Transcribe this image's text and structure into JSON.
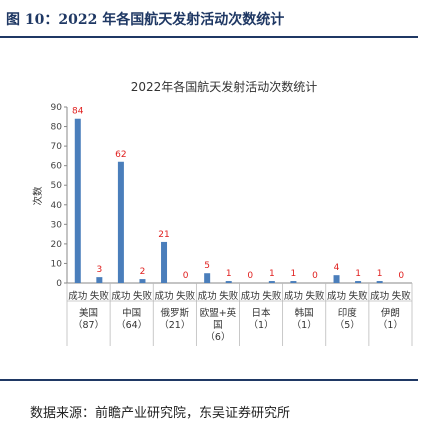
{
  "figure": {
    "title": "图 10：2022 年各国航天发射活动次数统计",
    "source": "数据来源：前瞻产业研究院，东吴证券研究所"
  },
  "chart_data": {
    "type": "bar",
    "title": "2022年各国航天发射活动次数统计",
    "ylabel": "次数",
    "ylim": [
      0,
      90
    ],
    "yticks": [
      0,
      10,
      20,
      30,
      40,
      50,
      60,
      70,
      80,
      90
    ],
    "grid": false,
    "bar_color": "#4a7ebb",
    "label_color": "#e0201f",
    "groups": [
      {
        "country": "美国",
        "total": "（87）",
        "success_label": "成功",
        "fail_label": "失败",
        "success": 84,
        "fail": 3
      },
      {
        "country": "中国",
        "total": "（64）",
        "success_label": "成功",
        "fail_label": "失败",
        "success": 62,
        "fail": 2
      },
      {
        "country": "俄罗斯",
        "total": "（21）",
        "success_label": "成功",
        "fail_label": "失败",
        "success": 21,
        "fail": 0
      },
      {
        "country": "欧盟+英国",
        "total": "（6）",
        "success_label": "成功",
        "fail_label": "失败",
        "success": 5,
        "fail": 1
      },
      {
        "country": "日本",
        "total": "（1）",
        "success_label": "成功",
        "fail_label": "失败",
        "success": 0,
        "fail": 1
      },
      {
        "country": "韩国",
        "total": "（1）",
        "success_label": "成功",
        "fail_label": "失败",
        "success": 1,
        "fail": 0
      },
      {
        "country": "印度",
        "total": "（5）",
        "success_label": "成功",
        "fail_label": "失败",
        "success": 4,
        "fail": 1
      },
      {
        "country": "伊朗",
        "total": "（1）",
        "success_label": "成功",
        "fail_label": "失败",
        "success": 1,
        "fail": 0
      }
    ]
  }
}
